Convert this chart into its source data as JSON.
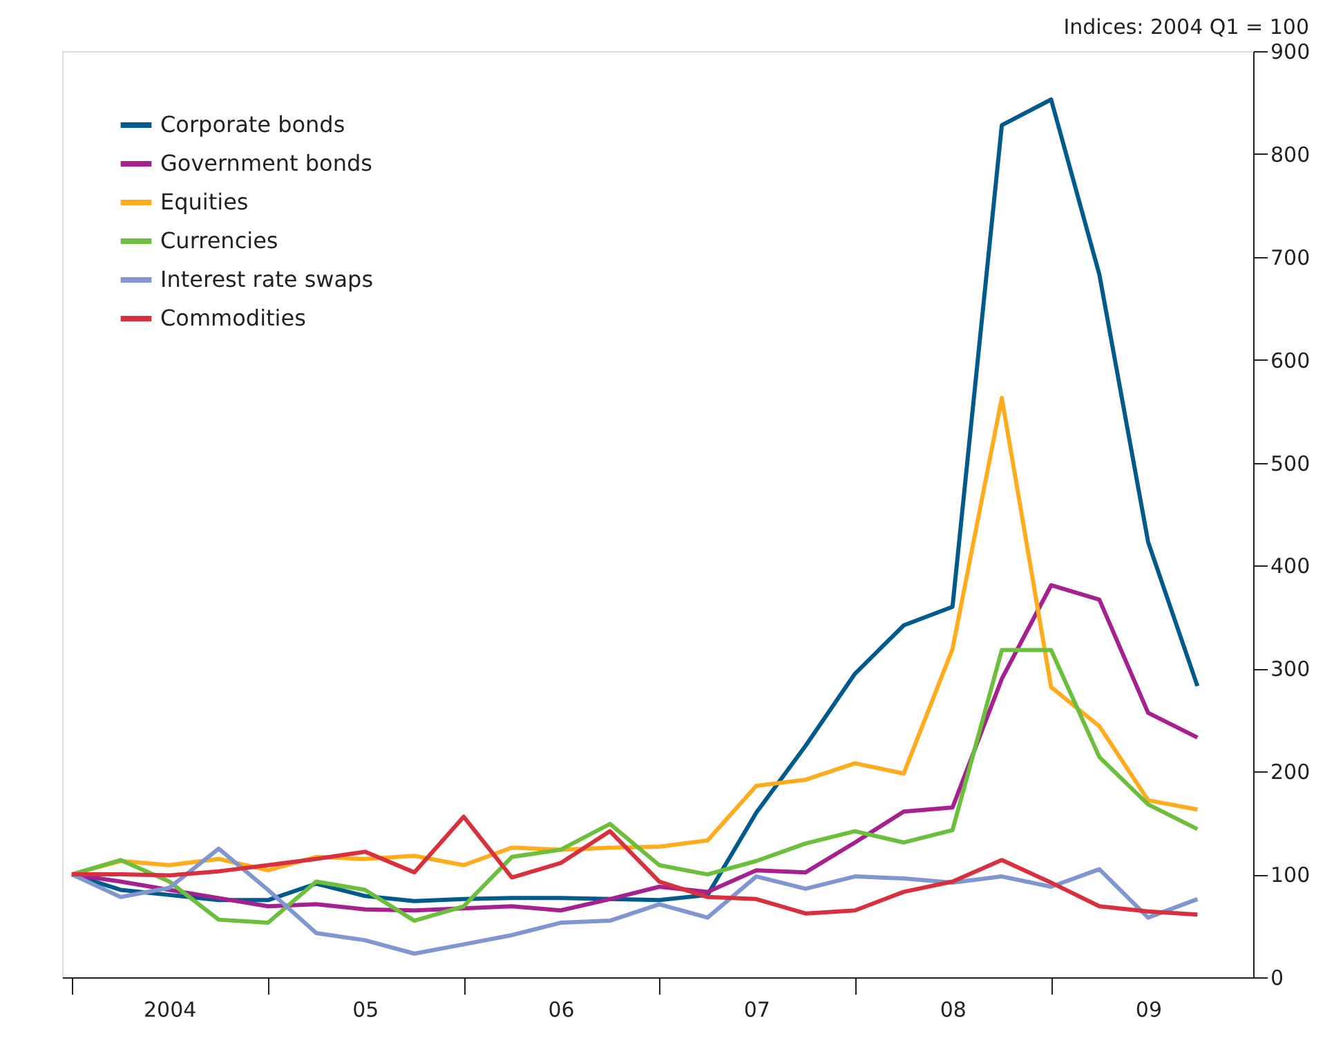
{
  "chart_data": {
    "type": "line",
    "ylabel": "Indices:  2004 Q1 = 100",
    "x": [
      "2004-01",
      "2004-04",
      "2004-07",
      "2004-10",
      "2005-01",
      "2005-04",
      "2005-07",
      "2005-10",
      "2006-01",
      "2006-04",
      "2006-07",
      "2006-10",
      "2007-01",
      "2007-04",
      "2007-07",
      "2007-10",
      "2008-01",
      "2008-04",
      "2008-07",
      "2008-10",
      "2009-01",
      "2009-04",
      "2009-07",
      "2009-10"
    ],
    "xlim": [
      "2003-12-14",
      "2010-01-13"
    ],
    "xticks": [
      {
        "value": "2004",
        "label": null
      },
      {
        "value": "2004-07",
        "label": "2004"
      },
      {
        "value": "2005",
        "label": null
      },
      {
        "value": "2005-07",
        "label": "05"
      },
      {
        "value": "2006",
        "label": null
      },
      {
        "value": "2006-07",
        "label": "06"
      },
      {
        "value": "2007",
        "label": null
      },
      {
        "value": "2007-07",
        "label": "07"
      },
      {
        "value": "2008",
        "label": null
      },
      {
        "value": "2008-07",
        "label": "08"
      },
      {
        "value": "2009",
        "label": null
      },
      {
        "value": "2009-07",
        "label": "09"
      }
    ],
    "series": [
      {
        "name": "Corporate bonds",
        "color": "#005a8c",
        "values": [
          100,
          85,
          80,
          75,
          75,
          91,
          79,
          74,
          76,
          77,
          77,
          76,
          75,
          80,
          160,
          225,
          295,
          342,
          360,
          828,
          853,
          683,
          423,
          283
        ]
      },
      {
        "name": "Government bonds",
        "color": "#a4218f",
        "values": [
          100,
          93,
          85,
          77,
          69,
          71,
          66,
          65,
          67,
          69,
          65,
          76,
          88,
          83,
          104,
          102,
          131,
          161,
          165,
          290,
          381,
          367,
          257,
          233
        ]
      },
      {
        "name": "Equities",
        "color": "#ffab1e",
        "values": [
          100,
          113,
          109,
          115,
          104,
          117,
          115,
          118,
          109,
          126,
          124,
          126,
          127,
          133,
          186,
          192,
          208,
          198,
          319,
          563,
          282,
          244,
          172,
          163
        ]
      },
      {
        "name": "Currencies",
        "color": "#6cbf3c",
        "values": [
          100,
          114,
          93,
          56,
          53,
          93,
          85,
          55,
          69,
          117,
          124,
          149,
          109,
          100,
          113,
          130,
          142,
          131,
          143,
          318,
          318,
          214,
          168,
          144
        ]
      },
      {
        "name": "Interest rate swaps",
        "color": "#8096d0",
        "values": [
          100,
          78,
          87,
          125,
          85,
          43,
          36,
          23,
          32,
          41,
          53,
          55,
          71,
          58,
          98,
          86,
          98,
          96,
          92,
          98,
          88,
          105,
          58,
          76
        ]
      },
      {
        "name": "Commodities",
        "color": "#d9303e",
        "values": [
          100,
          100,
          99,
          103,
          109,
          115,
          122,
          102,
          156,
          97,
          111,
          142,
          93,
          78,
          76,
          62,
          65,
          83,
          93,
          114,
          92,
          69,
          64,
          61
        ]
      }
    ],
    "ylim": [
      0,
      900
    ],
    "yticks": [
      0,
      100,
      200,
      300,
      400,
      500,
      600,
      700,
      800,
      900
    ],
    "grid": false,
    "legend": "top left",
    "marker": "none",
    "line_style": "solid"
  }
}
